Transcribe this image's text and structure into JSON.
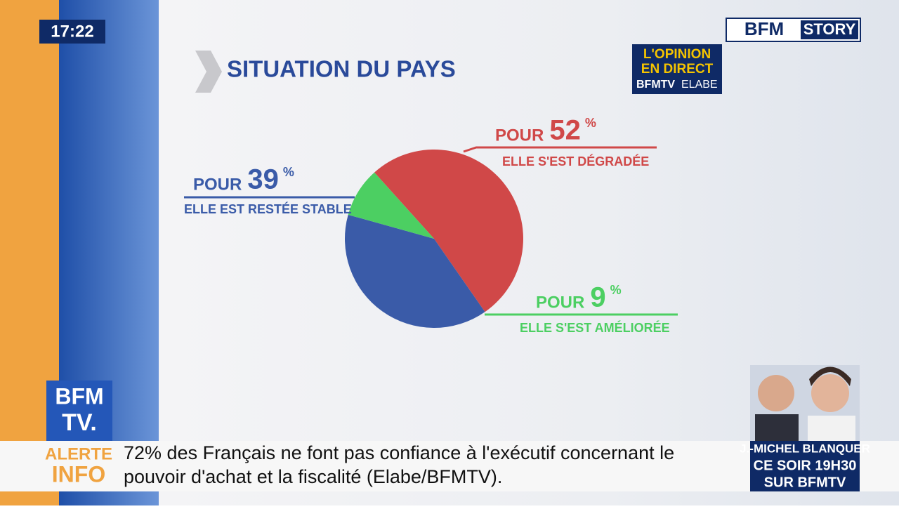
{
  "clock": "17:22",
  "channel_logo": {
    "left": "BFM",
    "right": "STORY"
  },
  "badge": {
    "line1": "L'OPINION",
    "line2": "EN DIRECT",
    "line3a": "BFMTV",
    "line3b": "ELABE"
  },
  "corner_logo": {
    "line1": "BFM",
    "line2": "TV."
  },
  "ticker": {
    "tag1": "ALERTE",
    "tag2": "INFO",
    "line1": "72% des Français ne font pas confiance à l'exécutif concernant le",
    "line2": "pouvoir d'achat et la fiscalité (Elabe/BFMTV)."
  },
  "promo": {
    "name": "J.-MICHEL BLANQUER",
    "time": "CE SOIR 19H30",
    "where": "SUR BFMTV"
  },
  "chart_data": {
    "type": "pie",
    "title": "SITUATION DU PAYS",
    "categories": [
      "ELLE S'EST DÉGRADÉE",
      "ELLE EST RESTÉE STABLE",
      "ELLE S'EST AMÉLIORÉE"
    ],
    "values": [
      52,
      39,
      9
    ],
    "colors": [
      "#d04848",
      "#3a5ba8",
      "#4ccf62"
    ],
    "label_prefix": "POUR",
    "unit": "%"
  }
}
